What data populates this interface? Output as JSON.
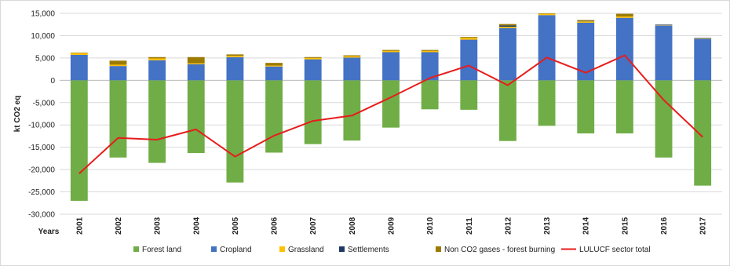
{
  "chart_data": {
    "type": "bar",
    "stacked": true,
    "ylabel": "kt CO2 eq",
    "xlabel": "Years",
    "ylim": [
      -30000,
      15000
    ],
    "ytick_step": 5000,
    "grid": "horizontal",
    "legend_position": "bottom",
    "categories": [
      "2001",
      "2002",
      "2003",
      "2004",
      "2005",
      "2006",
      "2007",
      "2008",
      "2009",
      "2010",
      "2011",
      "2012",
      "2013",
      "2014",
      "2015",
      "2016",
      "2017"
    ],
    "series": [
      {
        "name": "Forest land",
        "kind": "bar",
        "color": "#70ad47",
        "values": [
          -27000,
          -17300,
          -18500,
          -16300,
          -22900,
          -16200,
          -14300,
          -13500,
          -10600,
          -6500,
          -6600,
          -13600,
          -10200,
          -11900,
          -11900,
          -17300,
          -23600
        ]
      },
      {
        "name": "Cropland",
        "kind": "bar",
        "color": "#4472c4",
        "values": [
          5700,
          3200,
          4500,
          3600,
          5200,
          3100,
          4700,
          5100,
          6300,
          6300,
          9100,
          11700,
          14600,
          12900,
          14000,
          12300,
          9300
        ]
      },
      {
        "name": "Grassland",
        "kind": "bar",
        "color": "#ffc000",
        "values": [
          400,
          300,
          400,
          200,
          300,
          200,
          300,
          300,
          300,
          300,
          400,
          300,
          300,
          300,
          300,
          100,
          100
        ]
      },
      {
        "name": "Settlements",
        "kind": "bar",
        "color": "#203864",
        "values": [
          0,
          0,
          0,
          0,
          0,
          0,
          0,
          0,
          0,
          0,
          0,
          300,
          0,
          100,
          0,
          100,
          100
        ]
      },
      {
        "name": "Non CO2 gases - forest burning",
        "kind": "bar",
        "color": "#9c7a00",
        "values": [
          100,
          900,
          300,
          1400,
          300,
          600,
          200,
          200,
          200,
          200,
          200,
          300,
          100,
          200,
          600,
          0,
          0
        ]
      },
      {
        "name": "LULUCF sector total",
        "kind": "line",
        "color": "#e81c1c",
        "values": [
          -20900,
          -12900,
          -13300,
          -11000,
          -17100,
          -12400,
          -9100,
          -7900,
          -3800,
          500,
          3300,
          -1100,
          5100,
          1700,
          5600,
          -4400,
          -12700
        ]
      }
    ]
  }
}
